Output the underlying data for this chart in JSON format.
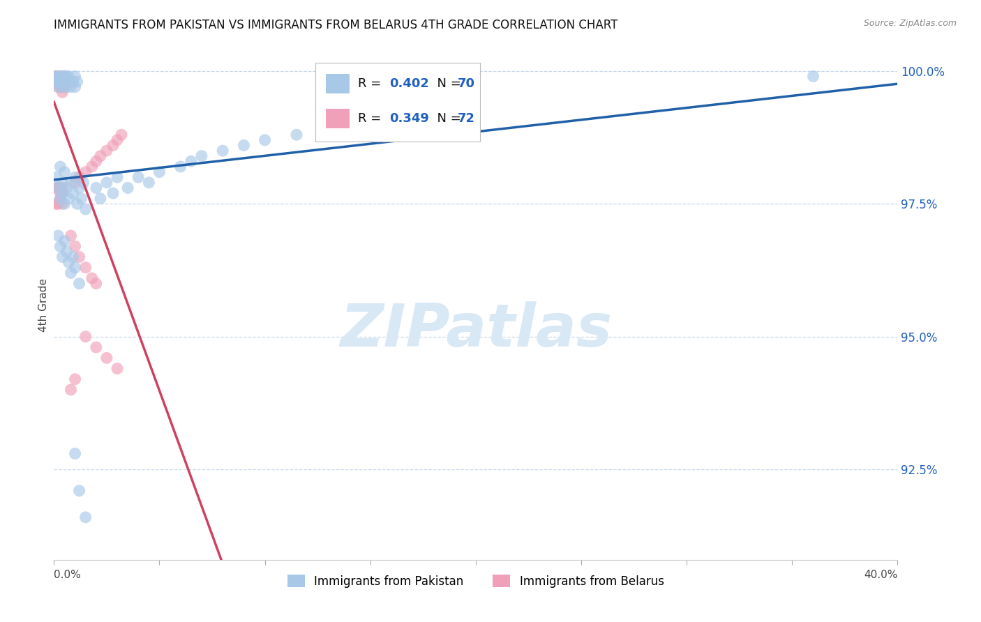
{
  "title": "IMMIGRANTS FROM PAKISTAN VS IMMIGRANTS FROM BELARUS 4TH GRADE CORRELATION CHART",
  "source": "Source: ZipAtlas.com",
  "ylabel": "4th Grade",
  "ytick_labels": [
    "100.0%",
    "97.5%",
    "95.0%",
    "92.5%"
  ],
  "ytick_values": [
    1.0,
    0.975,
    0.95,
    0.925
  ],
  "series1_label": "Immigrants from Pakistan",
  "series1_color": "#a8c8e8",
  "series2_label": "Immigrants from Belarus",
  "series2_color": "#f0a0b8",
  "series1_R": 0.402,
  "series1_N": 70,
  "series2_R": 0.349,
  "series2_N": 72,
  "trend1_color": "#2060a8",
  "trend2_color": "#d04060",
  "text_blue": "#2060c0",
  "watermark_color": "#d8e8f4",
  "xmin": 0.0,
  "xmax": 0.4,
  "ymin": 0.908,
  "ymax": 1.004
}
